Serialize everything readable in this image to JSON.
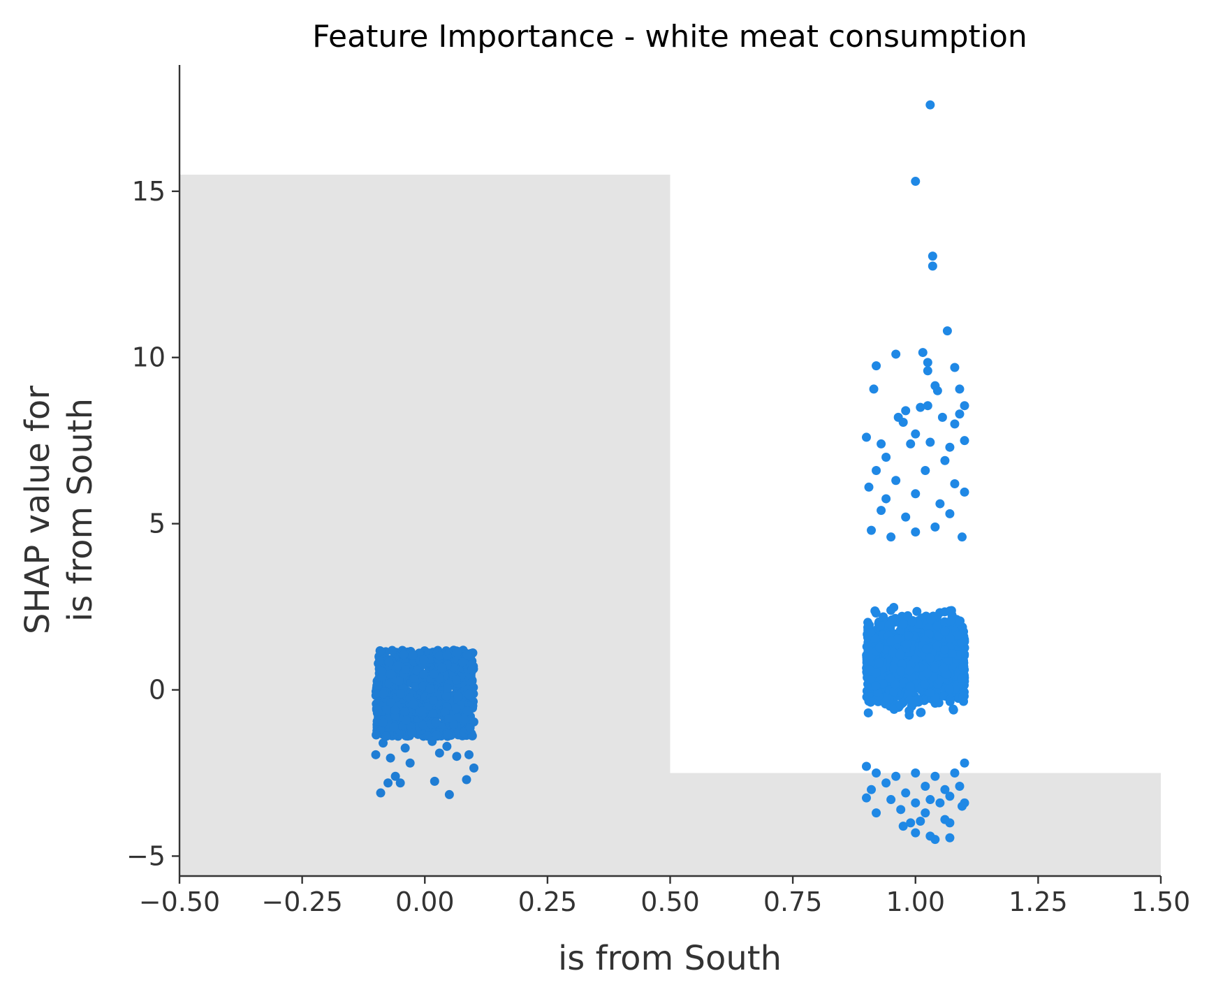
{
  "chart_data": {
    "type": "scatter",
    "title": "Feature Importance - white meat consumption",
    "xlabel": "is from South",
    "ylabel_lines": [
      "SHAP value for",
      "is from South"
    ],
    "xlim": [
      -0.5,
      1.5
    ],
    "ylim": [
      -5.6,
      18.8
    ],
    "xticks": [
      -0.5,
      -0.25,
      0.0,
      0.25,
      0.5,
      0.75,
      1.0,
      1.25,
      1.5
    ],
    "xtick_labels": [
      "−0.50",
      "−0.25",
      "0.00",
      "0.25",
      "0.50",
      "0.75",
      "1.00",
      "1.25",
      "1.50"
    ],
    "yticks": [
      -5,
      0,
      5,
      10,
      15
    ],
    "ytick_labels": [
      "−5",
      "0",
      "5",
      "10",
      "15"
    ],
    "grid": false,
    "background_bars": [
      {
        "x0": -0.5,
        "x1": 0.5,
        "top": 15.5
      },
      {
        "x0": 0.5,
        "x1": 1.5,
        "top": -2.5
      }
    ],
    "colors": {
      "group0": "#1f7dd4",
      "group1": "#1f88e5",
      "histogram": "#e4e4e4",
      "axis": "#333333"
    },
    "series": [
      {
        "category": 0,
        "jitter": 0.1,
        "core_range": [
          -1.4,
          1.2
        ],
        "points": [
          [
            -0.09,
            -3.1
          ],
          [
            0.05,
            -3.15
          ],
          [
            -0.075,
            -2.8
          ],
          [
            -0.05,
            -2.8
          ],
          [
            0.02,
            -2.75
          ],
          [
            0.085,
            -2.7
          ],
          [
            -0.06,
            -2.6
          ],
          [
            0.1,
            -2.35
          ],
          [
            -0.1,
            -1.95
          ],
          [
            0.03,
            -1.9
          ],
          [
            0.09,
            -1.95
          ],
          [
            -0.04,
            -1.75
          ],
          [
            -0.07,
            -2.05
          ],
          [
            0.065,
            -2.0
          ],
          [
            -0.085,
            -1.6
          ],
          [
            0.045,
            -1.7
          ],
          [
            -0.03,
            -2.2
          ],
          [
            0.015,
            -1.55
          ]
        ]
      },
      {
        "category": 1,
        "jitter": 0.1,
        "core_range": [
          -2.3,
          4.5
        ],
        "points": [
          [
            1.03,
            17.6
          ],
          [
            1.0,
            15.3
          ],
          [
            1.035,
            13.05
          ],
          [
            1.035,
            12.75
          ],
          [
            1.065,
            10.8
          ],
          [
            0.96,
            10.1
          ],
          [
            1.015,
            10.15
          ],
          [
            0.92,
            9.75
          ],
          [
            1.025,
            9.85
          ],
          [
            1.08,
            9.7
          ],
          [
            1.025,
            9.6
          ],
          [
            0.915,
            9.05
          ],
          [
            1.04,
            9.15
          ],
          [
            1.045,
            9.0
          ],
          [
            1.09,
            9.05
          ],
          [
            1.1,
            8.55
          ],
          [
            1.01,
            8.5
          ],
          [
            1.025,
            8.55
          ],
          [
            0.98,
            8.4
          ],
          [
            0.965,
            8.2
          ],
          [
            1.055,
            8.2
          ],
          [
            1.09,
            8.3
          ],
          [
            0.975,
            8.05
          ],
          [
            1.08,
            8.0
          ],
          [
            0.9,
            7.6
          ],
          [
            0.93,
            7.4
          ],
          [
            0.99,
            7.4
          ],
          [
            1.03,
            7.45
          ],
          [
            1.07,
            7.3
          ],
          [
            1.1,
            7.5
          ],
          [
            1.0,
            7.7
          ],
          [
            0.94,
            7.0
          ],
          [
            1.06,
            6.9
          ],
          [
            0.92,
            6.6
          ],
          [
            0.96,
            6.3
          ],
          [
            1.02,
            6.6
          ],
          [
            1.08,
            6.2
          ],
          [
            0.905,
            6.1
          ],
          [
            0.94,
            5.75
          ],
          [
            1.0,
            5.9
          ],
          [
            1.05,
            5.6
          ],
          [
            1.1,
            5.95
          ],
          [
            0.93,
            5.4
          ],
          [
            1.07,
            5.3
          ],
          [
            0.98,
            5.2
          ],
          [
            0.91,
            4.8
          ],
          [
            1.04,
            4.9
          ],
          [
            1.095,
            4.6
          ],
          [
            0.95,
            4.6
          ],
          [
            1.0,
            4.75
          ],
          [
            0.9,
            -2.3
          ],
          [
            0.92,
            -2.5
          ],
          [
            0.96,
            -2.6
          ],
          [
            1.0,
            -2.5
          ],
          [
            1.04,
            -2.6
          ],
          [
            1.08,
            -2.5
          ],
          [
            1.1,
            -2.2
          ],
          [
            0.94,
            -2.8
          ],
          [
            1.02,
            -2.9
          ],
          [
            1.06,
            -3.0
          ],
          [
            1.09,
            -2.9
          ],
          [
            0.91,
            -3.0
          ],
          [
            0.98,
            -3.1
          ],
          [
            1.03,
            -3.3
          ],
          [
            1.07,
            -3.2
          ],
          [
            1.1,
            -3.4
          ],
          [
            0.9,
            -3.25
          ],
          [
            0.95,
            -3.3
          ],
          [
            1.0,
            -3.4
          ],
          [
            1.05,
            -3.4
          ],
          [
            0.97,
            -3.6
          ],
          [
            1.02,
            -3.7
          ],
          [
            1.095,
            -3.5
          ],
          [
            0.92,
            -3.7
          ],
          [
            1.06,
            -3.9
          ],
          [
            0.99,
            -4.0
          ],
          [
            1.01,
            -3.95
          ],
          [
            0.975,
            -4.1
          ],
          [
            1.07,
            -4.0
          ],
          [
            1.0,
            -4.3
          ],
          [
            1.03,
            -4.4
          ],
          [
            1.04,
            -4.5
          ],
          [
            1.07,
            -4.45
          ]
        ]
      }
    ]
  }
}
